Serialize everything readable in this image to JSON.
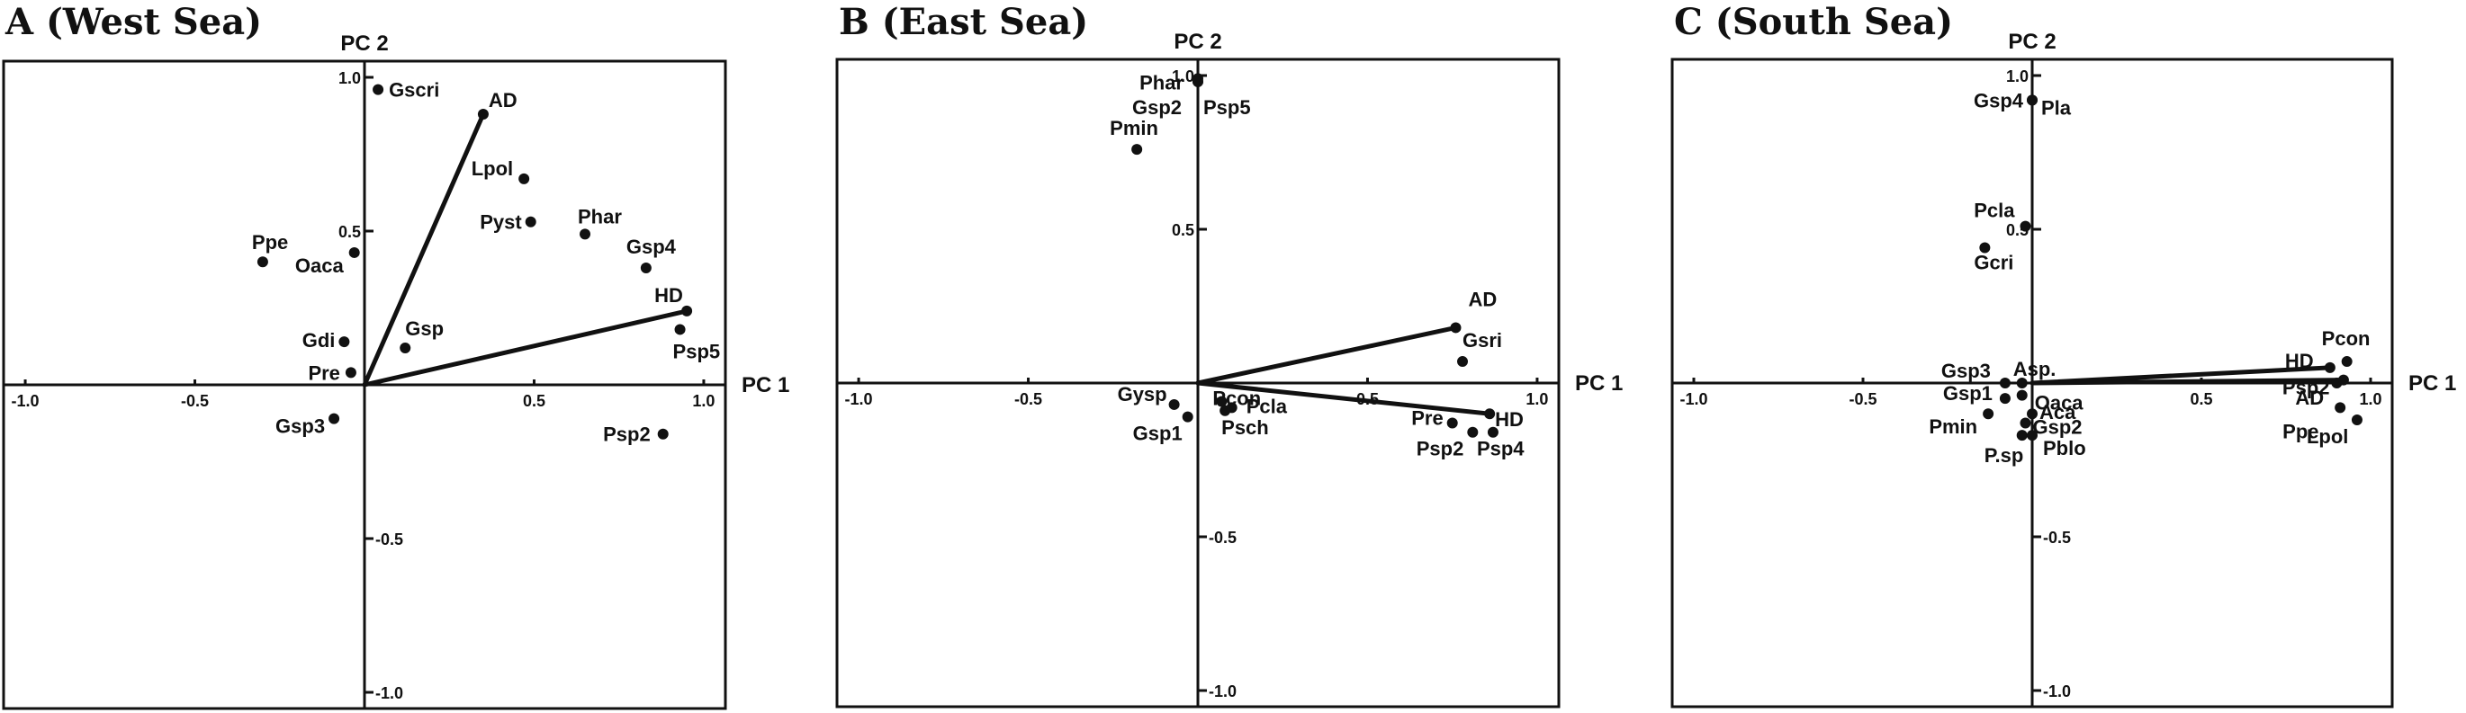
{
  "chart_data": [
    {
      "type": "scatter",
      "title": "A  (West Sea)",
      "xlabel": "PC 1",
      "ylabel": "PC 2",
      "xlim": [
        -1.0,
        1.0
      ],
      "ylim": [
        -1.0,
        1.0
      ],
      "x_ticks": [
        -1.0,
        -0.5,
        0.5,
        1.0
      ],
      "x_tick_labels": [
        "-1.0",
        "-0.5",
        "0.5",
        "1.0"
      ],
      "y_ticks": [
        1.0,
        0.5,
        -0.5,
        -1.0
      ],
      "y_tick_labels": [
        "1.0",
        "0.5",
        "-0.5",
        "-1.0"
      ],
      "vectors": [
        {
          "name": "AD",
          "x": 0.35,
          "y": 0.88
        },
        {
          "name": "HD",
          "x": 0.95,
          "y": 0.24
        }
      ],
      "points": [
        {
          "name": "Gscri",
          "x": 0.04,
          "y": 0.96
        },
        {
          "name": "Lpol",
          "x": 0.47,
          "y": 0.67
        },
        {
          "name": "Pyst",
          "x": 0.49,
          "y": 0.53
        },
        {
          "name": "Phar",
          "x": 0.65,
          "y": 0.49
        },
        {
          "name": "Gsp4",
          "x": 0.83,
          "y": 0.38
        },
        {
          "name": "Psp5",
          "x": 0.93,
          "y": 0.18
        },
        {
          "name": "Ppe",
          "x": -0.3,
          "y": 0.4
        },
        {
          "name": "Oaca",
          "x": -0.03,
          "y": 0.43
        },
        {
          "name": "Gdi",
          "x": -0.06,
          "y": 0.14
        },
        {
          "name": "Pre",
          "x": -0.04,
          "y": 0.04
        },
        {
          "name": "Gsp",
          "x": 0.12,
          "y": 0.12
        },
        {
          "name": "Gsp3",
          "x": -0.09,
          "y": -0.11
        },
        {
          "name": "Psp2",
          "x": 0.88,
          "y": -0.16
        }
      ]
    },
    {
      "type": "scatter",
      "title": "B  (East Sea)",
      "xlabel": "PC 1",
      "ylabel": "PC 2",
      "xlim": [
        -1.0,
        1.0
      ],
      "ylim": [
        -1.0,
        1.0
      ],
      "x_ticks": [
        -1.0,
        -0.5,
        0.5,
        1.0
      ],
      "x_tick_labels": [
        "-1.0",
        "-0.5",
        "0.5",
        "1.0"
      ],
      "y_ticks": [
        1.0,
        0.5,
        -0.5,
        -1.0
      ],
      "y_tick_labels": [
        "1.0",
        "0.5",
        "-0.5",
        "-1.0"
      ],
      "vectors": [
        {
          "name": "AD",
          "x": 0.76,
          "y": 0.18
        },
        {
          "name": "HD",
          "x": 0.86,
          "y": -0.1
        }
      ],
      "points": [
        {
          "name": "Phar",
          "x": 0.0,
          "y": 0.99
        },
        {
          "name": "Gsp2",
          "x": 0.0,
          "y": 0.98
        },
        {
          "name": "Psp5",
          "x": 0.0,
          "y": 0.98
        },
        {
          "name": "Pmin",
          "x": -0.18,
          "y": 0.76
        },
        {
          "name": "Gsri",
          "x": 0.78,
          "y": 0.07
        },
        {
          "name": "Gysp",
          "x": -0.07,
          "y": -0.07
        },
        {
          "name": "Gsp1",
          "x": -0.03,
          "y": -0.11
        },
        {
          "name": "Pcon",
          "x": 0.07,
          "y": -0.06
        },
        {
          "name": "Pcla",
          "x": 0.1,
          "y": -0.08
        },
        {
          "name": "Psch",
          "x": 0.08,
          "y": -0.09
        },
        {
          "name": "Pre",
          "x": 0.75,
          "y": -0.13
        },
        {
          "name": "Psp2",
          "x": 0.81,
          "y": -0.16
        },
        {
          "name": "Psp4",
          "x": 0.87,
          "y": -0.16
        }
      ]
    },
    {
      "type": "scatter",
      "title": "C  (South Sea)",
      "xlabel": "PC 1",
      "ylabel": "PC 2",
      "xlim": [
        -1.0,
        1.0
      ],
      "ylim": [
        -1.0,
        1.0
      ],
      "x_ticks": [
        -1.0,
        -0.5,
        0.5,
        1.0
      ],
      "x_tick_labels": [
        "-1.0",
        "-0.5",
        "0.5",
        "1.0"
      ],
      "y_ticks": [
        1.0,
        0.5,
        -0.5,
        -1.0
      ],
      "y_tick_labels": [
        "1.0",
        "0.5",
        "-0.5",
        "-1.0"
      ],
      "vectors": [
        {
          "name": "HD",
          "x": 0.88,
          "y": 0.05
        },
        {
          "name": "Psp2",
          "x": 0.92,
          "y": 0.01
        }
      ],
      "points": [
        {
          "name": "Gsp4",
          "x": 0.0,
          "y": 0.92
        },
        {
          "name": "Pla",
          "x": 0.0,
          "y": 0.92
        },
        {
          "name": "Pcla",
          "x": -0.02,
          "y": 0.51
        },
        {
          "name": "Gcri",
          "x": -0.14,
          "y": 0.44
        },
        {
          "name": "Pcon",
          "x": 0.93,
          "y": 0.07
        },
        {
          "name": "AD",
          "x": 0.9,
          "y": 0.0
        },
        {
          "name": "Ppe",
          "x": 0.91,
          "y": -0.08
        },
        {
          "name": "Lpol",
          "x": 0.96,
          "y": -0.12
        },
        {
          "name": "Gsp3",
          "x": -0.08,
          "y": 0.0
        },
        {
          "name": "Asp.",
          "x": -0.03,
          "y": 0.0
        },
        {
          "name": "Gsp1",
          "x": -0.08,
          "y": -0.05
        },
        {
          "name": "Oaca",
          "x": -0.03,
          "y": -0.04
        },
        {
          "name": "Pmin",
          "x": -0.13,
          "y": -0.1
        },
        {
          "name": "Aca",
          "x": 0.0,
          "y": -0.1
        },
        {
          "name": "Gsp2",
          "x": -0.02,
          "y": -0.13
        },
        {
          "name": "P.sp",
          "x": -0.03,
          "y": -0.17
        },
        {
          "name": "Pblo",
          "x": 0.0,
          "y": -0.17
        }
      ]
    }
  ]
}
